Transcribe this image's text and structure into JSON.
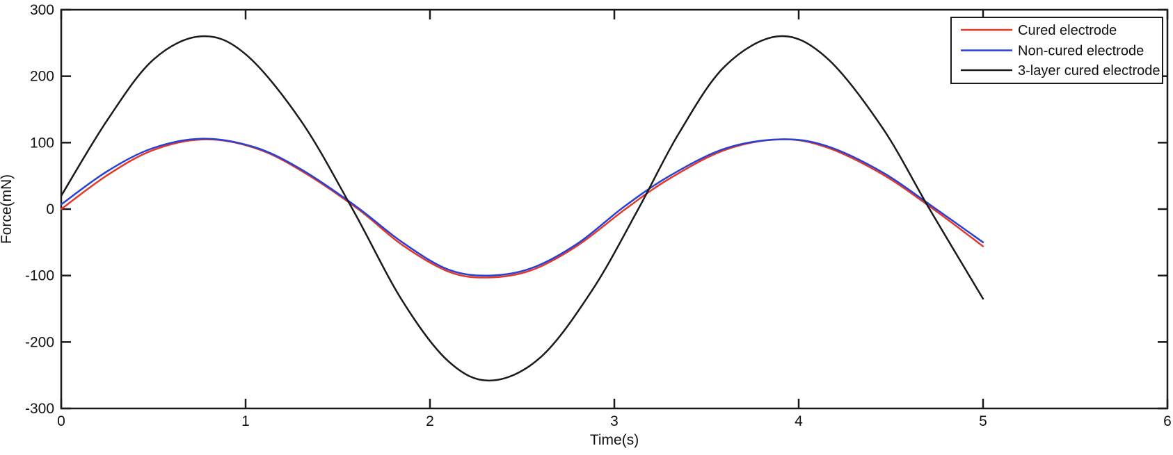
{
  "figure": {
    "background": "#ffffff",
    "axis_color": "#1a1a1a"
  },
  "chart_data": {
    "type": "line",
    "title": "",
    "xlabel": "Time(s)",
    "ylabel": "Force(mN)",
    "xlim": [
      0,
      6
    ],
    "ylim": [
      -300,
      300
    ],
    "x_ticks": [
      "0",
      "1",
      "2",
      "3",
      "4",
      "5",
      "6"
    ],
    "x_tick_values": [
      0,
      1,
      2,
      3,
      4,
      5,
      6
    ],
    "y_ticks": [
      "-300",
      "-200",
      "-100",
      "0",
      "100",
      "200",
      "300"
    ],
    "y_tick_values": [
      -300,
      -200,
      -100,
      0,
      100,
      200,
      300
    ],
    "grid": false,
    "legend_position": "top-right",
    "series": [
      {
        "name": "Cured electrode",
        "color": "#e2392b",
        "amplitude_mN": 105,
        "period_s": 3.1,
        "points": [
          [
            0,
            0
          ],
          [
            0.25,
            51
          ],
          [
            0.5,
            89
          ],
          [
            0.78,
            105
          ],
          [
            1.05,
            92
          ],
          [
            1.3,
            58
          ],
          [
            1.61,
            0
          ],
          [
            1.85,
            -54
          ],
          [
            2.1,
            -94
          ],
          [
            2.31,
            -103
          ],
          [
            2.55,
            -92
          ],
          [
            2.8,
            -55
          ],
          [
            3.06,
            0
          ],
          [
            3.3,
            46
          ],
          [
            3.6,
            89
          ],
          [
            3.9,
            105
          ],
          [
            4.15,
            93
          ],
          [
            4.45,
            53
          ],
          [
            4.73,
            0
          ],
          [
            5.0,
            -56
          ]
        ]
      },
      {
        "name": "Non-cured electrode",
        "color": "#2740d6",
        "amplitude_mN": 105,
        "period_s": 3.1,
        "points": [
          [
            0,
            7
          ],
          [
            0.25,
            57
          ],
          [
            0.5,
            92
          ],
          [
            0.77,
            106
          ],
          [
            1.05,
            93
          ],
          [
            1.3,
            60
          ],
          [
            1.6,
            4
          ],
          [
            1.85,
            -50
          ],
          [
            2.1,
            -91
          ],
          [
            2.32,
            -100
          ],
          [
            2.55,
            -89
          ],
          [
            2.8,
            -52
          ],
          [
            3.05,
            3
          ],
          [
            3.3,
            50
          ],
          [
            3.6,
            91
          ],
          [
            3.9,
            105
          ],
          [
            4.15,
            95
          ],
          [
            4.45,
            56
          ],
          [
            4.73,
            3
          ],
          [
            5.0,
            -50
          ]
        ]
      },
      {
        "name": "3-layer cured electrode",
        "color": "#1a1a1a",
        "amplitude_mN": 260,
        "period_s": 3.1,
        "points": [
          [
            0,
            20
          ],
          [
            0.25,
            134
          ],
          [
            0.5,
            225
          ],
          [
            0.76,
            260
          ],
          [
            1.0,
            233
          ],
          [
            1.3,
            133
          ],
          [
            1.58,
            0
          ],
          [
            1.85,
            -138
          ],
          [
            2.1,
            -229
          ],
          [
            2.33,
            -258
          ],
          [
            2.6,
            -223
          ],
          [
            2.88,
            -122
          ],
          [
            3.13,
            0
          ],
          [
            3.35,
            114
          ],
          [
            3.6,
            215
          ],
          [
            3.89,
            260
          ],
          [
            4.15,
            228
          ],
          [
            4.45,
            124
          ],
          [
            4.71,
            0
          ],
          [
            5.0,
            -135
          ]
        ]
      }
    ]
  }
}
